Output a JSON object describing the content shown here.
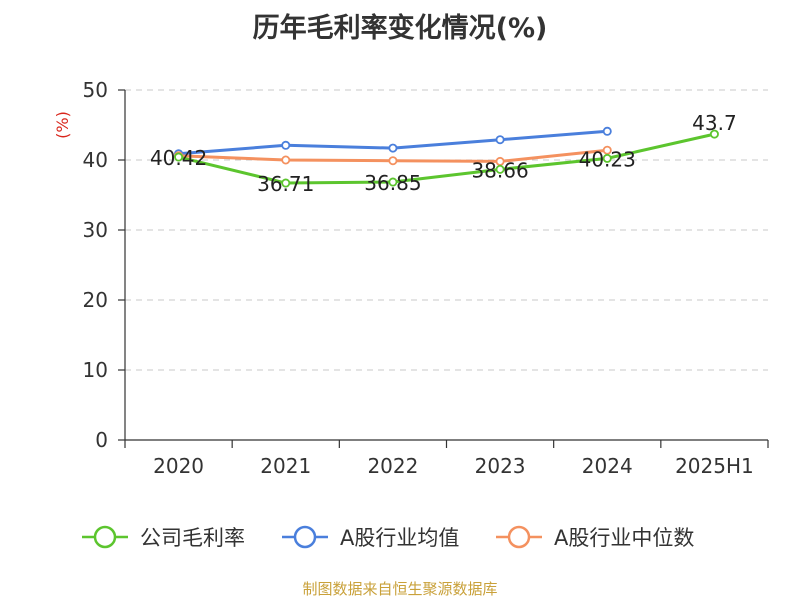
{
  "chart_data": {
    "type": "line",
    "title": "历年毛利率变化情况(%)",
    "ylabel": "(%)",
    "xlabel": "",
    "categories": [
      "2020",
      "2021",
      "2022",
      "2023",
      "2024",
      "2025H1"
    ],
    "ylim": [
      0,
      50
    ],
    "yticks": [
      0,
      10,
      20,
      30,
      40,
      50
    ],
    "grid": true,
    "legend_position": "bottom",
    "series": [
      {
        "name": "公司毛利率",
        "color": "#5cc52e",
        "values": [
          40.42,
          36.71,
          36.85,
          38.66,
          40.23,
          43.7
        ],
        "labels": [
          "40.42",
          "36.71",
          "36.85",
          "38.66",
          "40.23",
          "43.7"
        ]
      },
      {
        "name": "A股行业均值",
        "color": "#4a7fdc",
        "values": [
          40.9,
          42.1,
          41.7,
          42.9,
          44.1,
          null
        ]
      },
      {
        "name": "A股行业中位数",
        "color": "#f4915f",
        "values": [
          40.6,
          40.0,
          39.9,
          39.8,
          41.4,
          null
        ]
      }
    ]
  },
  "source": "制图数据来自恒生聚源数据库"
}
